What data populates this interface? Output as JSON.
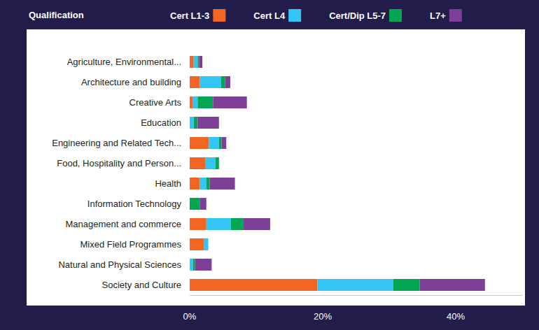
{
  "chart_data": {
    "type": "bar",
    "orientation": "horizontal",
    "stacked": true,
    "title": "Qualification",
    "legend": "top",
    "grid": false,
    "categories": [
      "Agriculture, Environmental...",
      "Architecture and building",
      "Creative Arts",
      "Education",
      "Engineering and Related Tech...",
      "Food, Hospitality and Person...",
      "Health",
      "Information Technology",
      "Management and commerce",
      "Mixed Field Programmes",
      "Natural and Physical Sciences",
      "Society and Culture"
    ],
    "series": [
      {
        "name": "Cert L1-3",
        "color": "#f26522",
        "values": [
          0.6,
          1.5,
          0.5,
          0,
          2.9,
          2.4,
          1.5,
          0,
          2.5,
          2.1,
          0,
          19.2
        ]
      },
      {
        "name": "Cert L4",
        "color": "#33c6f4",
        "values": [
          0.6,
          3.2,
          0.7,
          0.6,
          1.5,
          1.5,
          1.0,
          0,
          3.7,
          0.7,
          0.5,
          11.4
        ]
      },
      {
        "name": "Cert/Dip L5-7",
        "color": "#00a651",
        "values": [
          0.2,
          0.6,
          2.3,
          0.6,
          0.4,
          0.5,
          0.5,
          1.5,
          1.9,
          0,
          0.3,
          4.0
        ]
      },
      {
        "name": "L7+",
        "color": "#7e3f98",
        "values": [
          0.5,
          0.8,
          5.1,
          3.2,
          0.7,
          0,
          3.8,
          1.0,
          4.0,
          0,
          2.5,
          9.8
        ]
      }
    ],
    "xlim": [
      0,
      50
    ],
    "xticks": [
      {
        "value": 0,
        "label": "0%"
      },
      {
        "value": 20,
        "label": "20%"
      },
      {
        "value": 40,
        "label": "40%"
      }
    ]
  }
}
